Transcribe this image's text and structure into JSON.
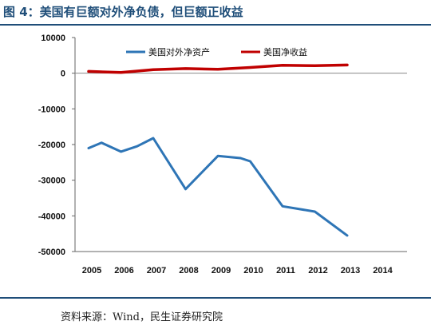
{
  "header": {
    "title": "图 4：美国有巨额对外净负债，但巨额正收益"
  },
  "footer": {
    "source": "资料来源：Wind，民生证券研究院"
  },
  "colors": {
    "title": "#1f4e79",
    "series_assets": "#2e75b6",
    "series_income": "#c00000"
  },
  "chart_data": {
    "type": "line",
    "x": [
      "2005",
      "2006",
      "2007",
      "2008",
      "2009",
      "2010",
      "2011",
      "2012",
      "2013",
      "2014"
    ],
    "ylim": [
      -50000,
      10000
    ],
    "yticks": [
      "10000",
      "0",
      "-10000",
      "-20000",
      "-30000",
      "-40000",
      "-50000"
    ],
    "legend_position": "top-right",
    "grid": false,
    "series": [
      {
        "name": "美国对外净资产",
        "color": "#2e75b6",
        "points": [
          [
            "2005",
            -21000
          ],
          [
            "2005.4",
            -19500
          ],
          [
            "2006",
            -22000
          ],
          [
            "2006.5",
            -20500
          ],
          [
            "2007",
            -18200
          ],
          [
            "2008",
            -32500
          ],
          [
            "2009",
            -23200
          ],
          [
            "2009.7",
            -23800
          ],
          [
            "2010",
            -24700
          ],
          [
            "2011",
            -37300
          ],
          [
            "2012",
            -38800
          ],
          [
            "2013",
            -45500
          ]
        ]
      },
      {
        "name": "美国净收益",
        "color": "#c00000",
        "points": [
          [
            "2005",
            500
          ],
          [
            "2006",
            200
          ],
          [
            "2007",
            1000
          ],
          [
            "2008",
            1300
          ],
          [
            "2009",
            1100
          ],
          [
            "2010",
            1600
          ],
          [
            "2011",
            2200
          ],
          [
            "2012",
            2100
          ],
          [
            "2013",
            2300
          ]
        ]
      }
    ]
  }
}
